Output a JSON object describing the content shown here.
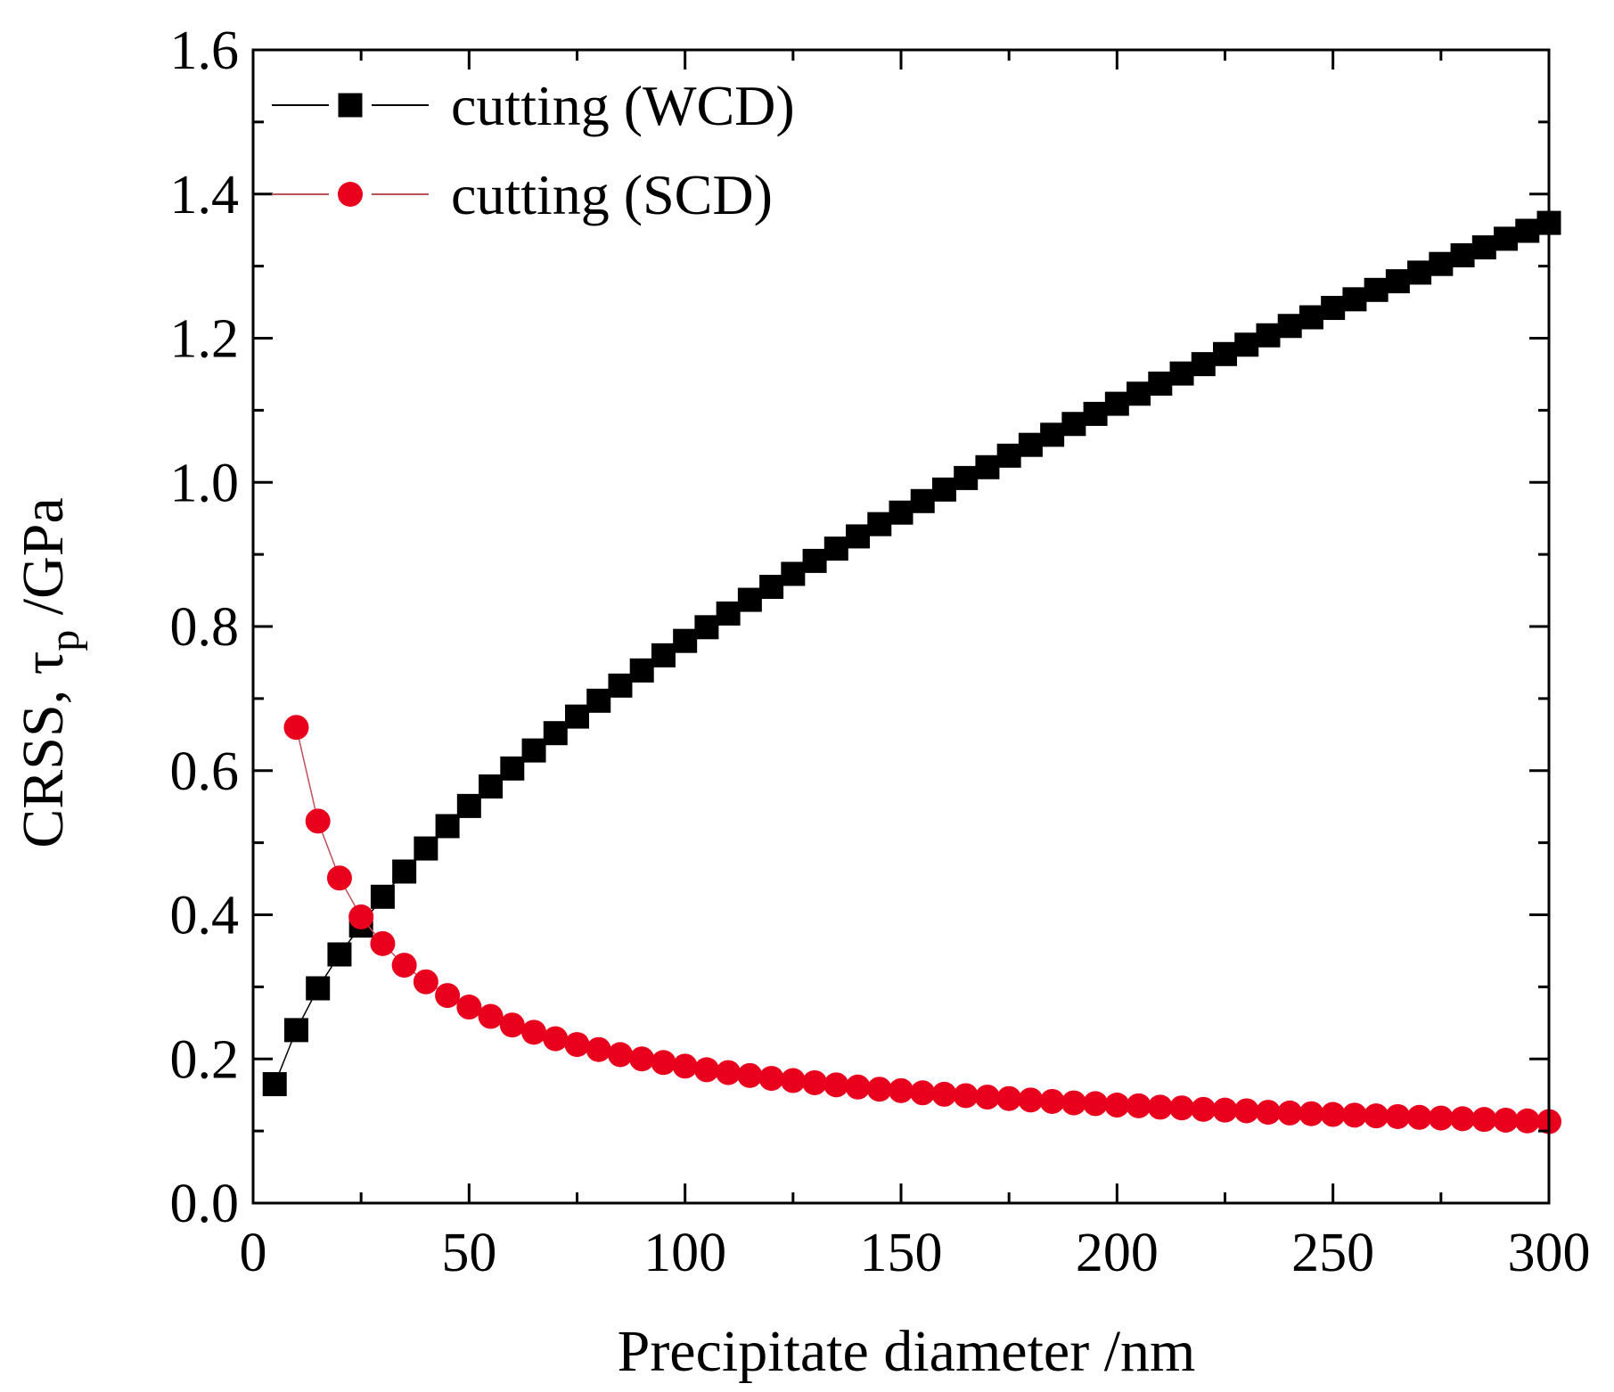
{
  "chart_data": {
    "type": "line",
    "title": "",
    "xlabel": "Precipitate diameter /nm",
    "ylabel": "CRSS, τ",
    "ylabel_subscript": "p",
    "ylabel_unit": " /GPa",
    "xlim": [
      0,
      300
    ],
    "ylim": [
      0.0,
      1.6
    ],
    "xticks": [
      0,
      50,
      100,
      150,
      200,
      250,
      300
    ],
    "xtick_labels": [
      "0",
      "50",
      "100",
      "150",
      "200",
      "250",
      "300"
    ],
    "yticks": [
      0.0,
      0.2,
      0.4,
      0.6,
      0.8,
      1.0,
      1.2,
      1.4,
      1.6
    ],
    "ytick_labels": [
      "0.0",
      "0.2",
      "0.4",
      "0.6",
      "0.8",
      "1.0",
      "1.2",
      "1.4",
      "1.6"
    ],
    "legend_position": "top-left",
    "grid": false,
    "series": [
      {
        "name": "cutting (WCD)",
        "marker": "square",
        "color": "#000000",
        "line_color": "#000000",
        "x": [
          5,
          10,
          15,
          20,
          25,
          30,
          35,
          40,
          45,
          50,
          55,
          60,
          65,
          70,
          75,
          80,
          85,
          90,
          95,
          100,
          105,
          110,
          115,
          120,
          125,
          130,
          135,
          140,
          145,
          150,
          155,
          160,
          165,
          170,
          175,
          180,
          185,
          190,
          195,
          200,
          205,
          210,
          215,
          220,
          225,
          230,
          235,
          240,
          245,
          250,
          255,
          260,
          265,
          270,
          275,
          280,
          285,
          290,
          295,
          300
        ],
        "y": [
          0.165,
          0.24,
          0.298,
          0.345,
          0.385,
          0.425,
          0.46,
          0.492,
          0.523,
          0.551,
          0.578,
          0.603,
          0.628,
          0.652,
          0.675,
          0.697,
          0.718,
          0.739,
          0.76,
          0.78,
          0.799,
          0.818,
          0.837,
          0.855,
          0.873,
          0.891,
          0.908,
          0.925,
          0.942,
          0.958,
          0.974,
          0.99,
          1.006,
          1.021,
          1.037,
          1.052,
          1.066,
          1.081,
          1.095,
          1.109,
          1.123,
          1.137,
          1.151,
          1.164,
          1.178,
          1.191,
          1.204,
          1.217,
          1.229,
          1.242,
          1.254,
          1.267,
          1.279,
          1.291,
          1.303,
          1.315,
          1.326,
          1.338,
          1.349,
          1.36
        ]
      },
      {
        "name": "cutting (SCD)",
        "marker": "circle",
        "color": "#e8001c",
        "line_color": "#c0505a",
        "x": [
          10,
          15,
          20,
          25,
          30,
          35,
          40,
          45,
          50,
          55,
          60,
          65,
          70,
          75,
          80,
          85,
          90,
          95,
          100,
          105,
          110,
          115,
          120,
          125,
          130,
          135,
          140,
          145,
          150,
          155,
          160,
          165,
          170,
          175,
          180,
          185,
          190,
          195,
          200,
          205,
          210,
          215,
          220,
          225,
          230,
          235,
          240,
          245,
          250,
          255,
          260,
          265,
          270,
          275,
          280,
          285,
          290,
          295,
          300
        ],
        "y": [
          0.66,
          0.53,
          0.451,
          0.397,
          0.36,
          0.33,
          0.307,
          0.288,
          0.272,
          0.259,
          0.247,
          0.237,
          0.228,
          0.22,
          0.213,
          0.206,
          0.2,
          0.195,
          0.19,
          0.185,
          0.181,
          0.177,
          0.173,
          0.17,
          0.167,
          0.164,
          0.161,
          0.158,
          0.156,
          0.153,
          0.151,
          0.149,
          0.147,
          0.145,
          0.143,
          0.141,
          0.139,
          0.138,
          0.136,
          0.135,
          0.133,
          0.132,
          0.13,
          0.129,
          0.128,
          0.126,
          0.125,
          0.124,
          0.123,
          0.122,
          0.121,
          0.12,
          0.119,
          0.118,
          0.117,
          0.116,
          0.115,
          0.114,
          0.113
        ]
      }
    ]
  }
}
